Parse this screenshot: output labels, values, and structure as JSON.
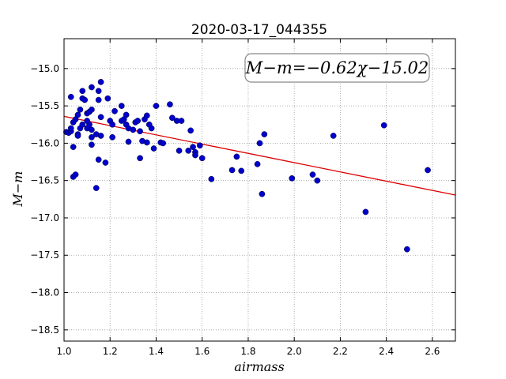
{
  "chart_data": {
    "type": "scatter",
    "title": "2020-03-17_044355",
    "xlabel": "airmass",
    "ylabel": "M−m",
    "xlim": [
      1.0,
      2.7
    ],
    "ylim": [
      -18.65,
      -14.6
    ],
    "y_inverted": true,
    "grid": true,
    "xticks": [
      1.0,
      1.2,
      1.4,
      1.6,
      1.8,
      2.0,
      2.2,
      2.4,
      2.6
    ],
    "xtick_labels": [
      "1.0",
      "1.2",
      "1.4",
      "1.6",
      "1.8",
      "2.0",
      "2.2",
      "2.4",
      "2.6"
    ],
    "yticks": [
      -15.0,
      -15.5,
      -16.0,
      -16.5,
      -17.0,
      -17.5,
      -18.0,
      -18.5
    ],
    "ytick_labels": [
      "−15.0",
      "−15.5",
      "−16.0",
      "−16.5",
      "−17.0",
      "−17.5",
      "−18.0",
      "−18.5"
    ],
    "annotation": "M−m=−0.62χ−15.02",
    "point_color": "#0000cc",
    "line_color": "#dd0000",
    "fit": {
      "slope": -0.62,
      "intercept": -15.02,
      "x_range": [
        1.0,
        2.7
      ]
    },
    "points": [
      [
        1.01,
        -15.85
      ],
      [
        1.02,
        -15.86
      ],
      [
        1.03,
        -15.84
      ],
      [
        1.03,
        -15.8
      ],
      [
        1.03,
        -15.38
      ],
      [
        1.04,
        -15.72
      ],
      [
        1.04,
        -16.05
      ],
      [
        1.04,
        -16.45
      ],
      [
        1.05,
        -16.42
      ],
      [
        1.05,
        -15.68
      ],
      [
        1.06,
        -15.88
      ],
      [
        1.06,
        -15.62
      ],
      [
        1.06,
        -15.9
      ],
      [
        1.07,
        -15.55
      ],
      [
        1.07,
        -15.8
      ],
      [
        1.08,
        -15.4
      ],
      [
        1.08,
        -15.3
      ],
      [
        1.08,
        -15.75
      ],
      [
        1.09,
        -15.42
      ],
      [
        1.1,
        -15.7
      ],
      [
        1.1,
        -15.8
      ],
      [
        1.1,
        -15.6
      ],
      [
        1.11,
        -15.58
      ],
      [
        1.11,
        -15.75
      ],
      [
        1.12,
        -15.25
      ],
      [
        1.12,
        -15.55
      ],
      [
        1.12,
        -16.02
      ],
      [
        1.12,
        -15.82
      ],
      [
        1.12,
        -15.92
      ],
      [
        1.14,
        -16.6
      ],
      [
        1.14,
        -15.88
      ],
      [
        1.15,
        -15.42
      ],
      [
        1.15,
        -16.22
      ],
      [
        1.15,
        -15.3
      ],
      [
        1.16,
        -15.65
      ],
      [
        1.16,
        -15.9
      ],
      [
        1.16,
        -15.18
      ],
      [
        1.18,
        -16.26
      ],
      [
        1.19,
        -15.4
      ],
      [
        1.2,
        -15.7
      ],
      [
        1.21,
        -15.92
      ],
      [
        1.21,
        -15.75
      ],
      [
        1.22,
        -15.57
      ],
      [
        1.25,
        -15.5
      ],
      [
        1.25,
        -15.7
      ],
      [
        1.26,
        -15.68
      ],
      [
        1.27,
        -15.75
      ],
      [
        1.27,
        -15.62
      ],
      [
        1.28,
        -15.8
      ],
      [
        1.28,
        -15.98
      ],
      [
        1.3,
        -15.82
      ],
      [
        1.31,
        -15.72
      ],
      [
        1.32,
        -15.7
      ],
      [
        1.33,
        -16.2
      ],
      [
        1.33,
        -15.84
      ],
      [
        1.34,
        -15.97
      ],
      [
        1.35,
        -15.68
      ],
      [
        1.36,
        -15.63
      ],
      [
        1.36,
        -15.99
      ],
      [
        1.37,
        -15.75
      ],
      [
        1.38,
        -15.8
      ],
      [
        1.39,
        -16.07
      ],
      [
        1.4,
        -15.5
      ],
      [
        1.42,
        -15.99
      ],
      [
        1.43,
        -16.0
      ],
      [
        1.46,
        -15.48
      ],
      [
        1.47,
        -15.66
      ],
      [
        1.49,
        -15.7
      ],
      [
        1.5,
        -16.1
      ],
      [
        1.51,
        -15.7
      ],
      [
        1.54,
        -16.1
      ],
      [
        1.55,
        -15.83
      ],
      [
        1.56,
        -16.05
      ],
      [
        1.57,
        -16.12
      ],
      [
        1.57,
        -16.16
      ],
      [
        1.59,
        -16.03
      ],
      [
        1.6,
        -16.2
      ],
      [
        1.64,
        -16.48
      ],
      [
        1.73,
        -16.36
      ],
      [
        1.75,
        -16.18
      ],
      [
        1.77,
        -16.37
      ],
      [
        1.84,
        -16.28
      ],
      [
        1.85,
        -16.0
      ],
      [
        1.86,
        -16.68
      ],
      [
        1.87,
        -15.88
      ],
      [
        1.99,
        -16.47
      ],
      [
        2.08,
        -16.42
      ],
      [
        2.1,
        -16.5
      ],
      [
        2.17,
        -15.9
      ],
      [
        2.31,
        -16.92
      ],
      [
        2.39,
        -15.76
      ],
      [
        2.49,
        -17.42
      ],
      [
        2.58,
        -16.36
      ]
    ]
  }
}
